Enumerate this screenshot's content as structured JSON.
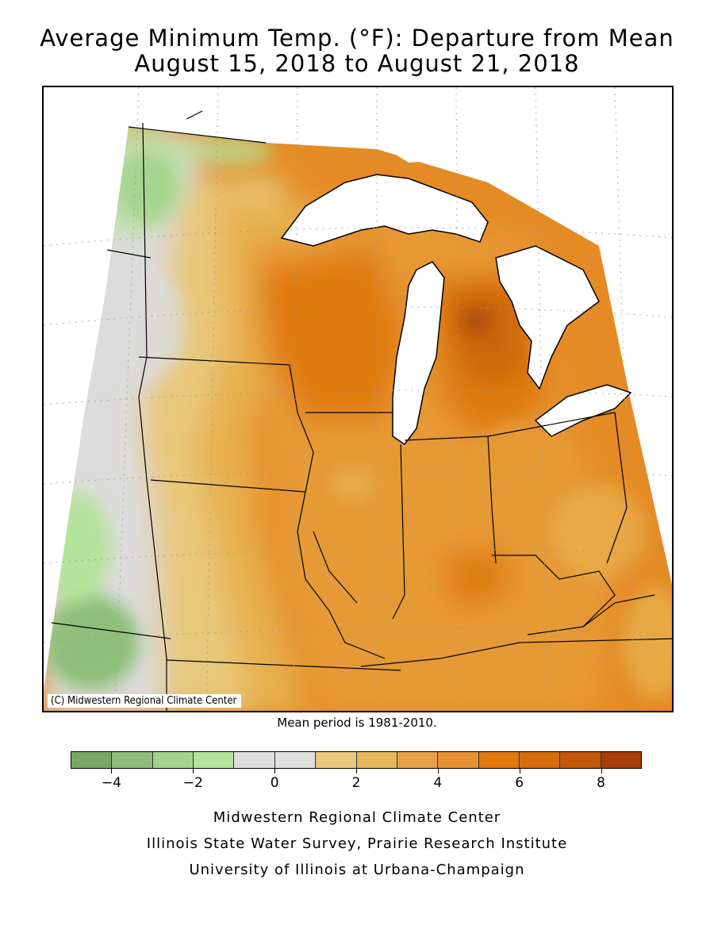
{
  "title": {
    "line1": "Average Minimum Temp. (°F): Departure from Mean",
    "line2": "August 15, 2018 to August 21, 2018"
  },
  "map": {
    "copyright": "(C) Midwestern Regional Climate Center",
    "region": "Upper Midwest / Great Lakes",
    "colors": {
      "strong_cool": "#8fbf78",
      "mild_cool": "#b5e39b",
      "neutral": "#dcdcdc",
      "warm1": "#e8c87a",
      "warm2": "#e8b04e",
      "warm3": "#e69a35",
      "warm4": "#e58b25",
      "warm5": "#e07a0c",
      "warm6": "#cc6610",
      "hot": "#b44e0c",
      "water": "#ffffff"
    }
  },
  "mean_note": "Mean period is 1981-2010.",
  "legend": {
    "colors": [
      "#7ca866",
      "#8fbe78",
      "#a3d48c",
      "#b5e39b",
      "#dcdcdc",
      "#e0e0e0",
      "#e8c87a",
      "#e8b65a",
      "#e8a344",
      "#e69030",
      "#e07a0c",
      "#d56c0e",
      "#c2580c",
      "#a63d08"
    ],
    "ticks": [
      "-4",
      "-2",
      "0",
      "2",
      "4",
      "6",
      "8"
    ]
  },
  "credits": {
    "line1": "Midwestern Regional Climate Center",
    "line2": "Illinois State Water Survey, Prairie Research Institute",
    "line3": "University of Illinois at Urbana-Champaign"
  }
}
